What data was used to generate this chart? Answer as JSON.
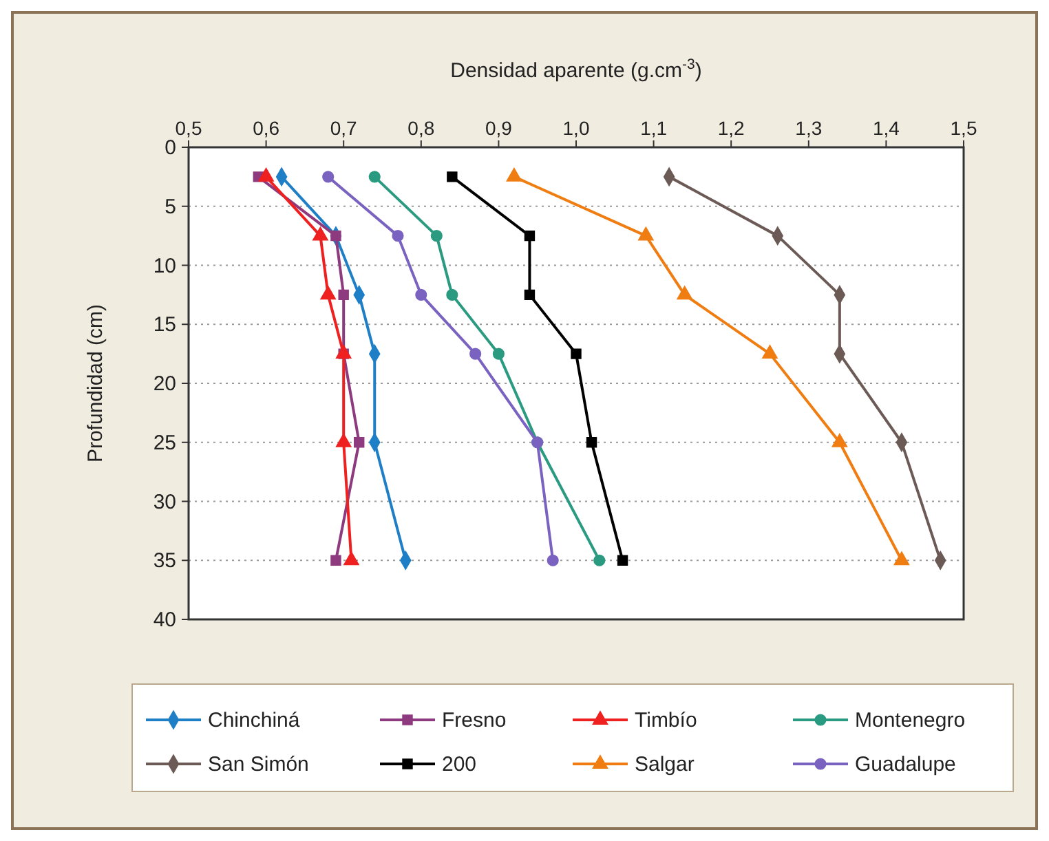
{
  "chart_data": {
    "type": "line",
    "xlabel": "Densidad aparente (g.cm$^{-3}$)",
    "ylabel": "Profundidad (cm)",
    "xlim": [
      0.5,
      1.5
    ],
    "xticks": [
      {
        "value": 0.5,
        "label": "0,5"
      },
      {
        "value": 0.6,
        "label": "0,6"
      },
      {
        "value": 0.7,
        "label": "0,7"
      },
      {
        "value": 0.8,
        "label": "0,8"
      },
      {
        "value": 0.9,
        "label": "0,9"
      },
      {
        "value": 1.0,
        "label": "1,0"
      },
      {
        "value": 1.1,
        "label": "1,1"
      },
      {
        "value": 1.2,
        "label": "1,2"
      },
      {
        "value": 1.3,
        "label": "1,3"
      },
      {
        "value": 1.4,
        "label": "1,4"
      },
      {
        "value": 1.5,
        "label": "1,5"
      }
    ],
    "ylim": [
      40,
      0
    ],
    "yticks": [
      0,
      5,
      10,
      15,
      20,
      25,
      30,
      35,
      40
    ],
    "grid": "y",
    "legend": "bottom",
    "series": [
      {
        "name": "Chinchiná",
        "color": "#1f7fc6",
        "marker": "diamond",
        "x": [
          0.62,
          0.69,
          0.72,
          0.74,
          0.74,
          0.78
        ],
        "values": [
          2.5,
          7.5,
          12.5,
          17.5,
          25,
          35
        ]
      },
      {
        "name": "Fresno",
        "color": "#8e3a7e",
        "marker": "square",
        "x": [
          0.59,
          0.69,
          0.7,
          0.7,
          0.72,
          0.69
        ],
        "values": [
          2.5,
          7.5,
          12.5,
          17.5,
          25,
          35
        ]
      },
      {
        "name": "Timbío",
        "color": "#ee2020",
        "marker": "triangle",
        "x": [
          0.6,
          0.67,
          0.68,
          0.7,
          0.7,
          0.71
        ],
        "values": [
          2.5,
          7.5,
          12.5,
          17.5,
          25,
          35
        ]
      },
      {
        "name": "Montenegro",
        "color": "#2a9a80",
        "marker": "circle",
        "x": [
          0.74,
          0.82,
          0.84,
          0.9,
          0.95,
          1.03
        ],
        "values": [
          2.5,
          7.5,
          12.5,
          17.5,
          25,
          35
        ]
      },
      {
        "name": "San Simón",
        "color": "#6b5a55",
        "marker": "diamond",
        "x": [
          1.12,
          1.26,
          1.34,
          1.34,
          1.42,
          1.47
        ],
        "values": [
          2.5,
          7.5,
          12.5,
          17.5,
          25,
          35
        ]
      },
      {
        "name": "200",
        "color": "#000000",
        "marker": "square",
        "x": [
          0.84,
          0.94,
          0.94,
          1.0,
          1.02,
          1.06
        ],
        "values": [
          2.5,
          7.5,
          12.5,
          17.5,
          25,
          35
        ]
      },
      {
        "name": "Salgar",
        "color": "#f07d12",
        "marker": "triangle",
        "x": [
          0.92,
          1.09,
          1.14,
          1.25,
          1.34,
          1.42
        ],
        "values": [
          2.5,
          7.5,
          12.5,
          17.5,
          25,
          35
        ]
      },
      {
        "name": "Guadalupe",
        "color": "#7a62c0",
        "marker": "circle",
        "x": [
          0.68,
          0.77,
          0.8,
          0.87,
          0.95,
          0.97
        ],
        "values": [
          2.5,
          7.5,
          12.5,
          17.5,
          25,
          35
        ]
      }
    ]
  }
}
